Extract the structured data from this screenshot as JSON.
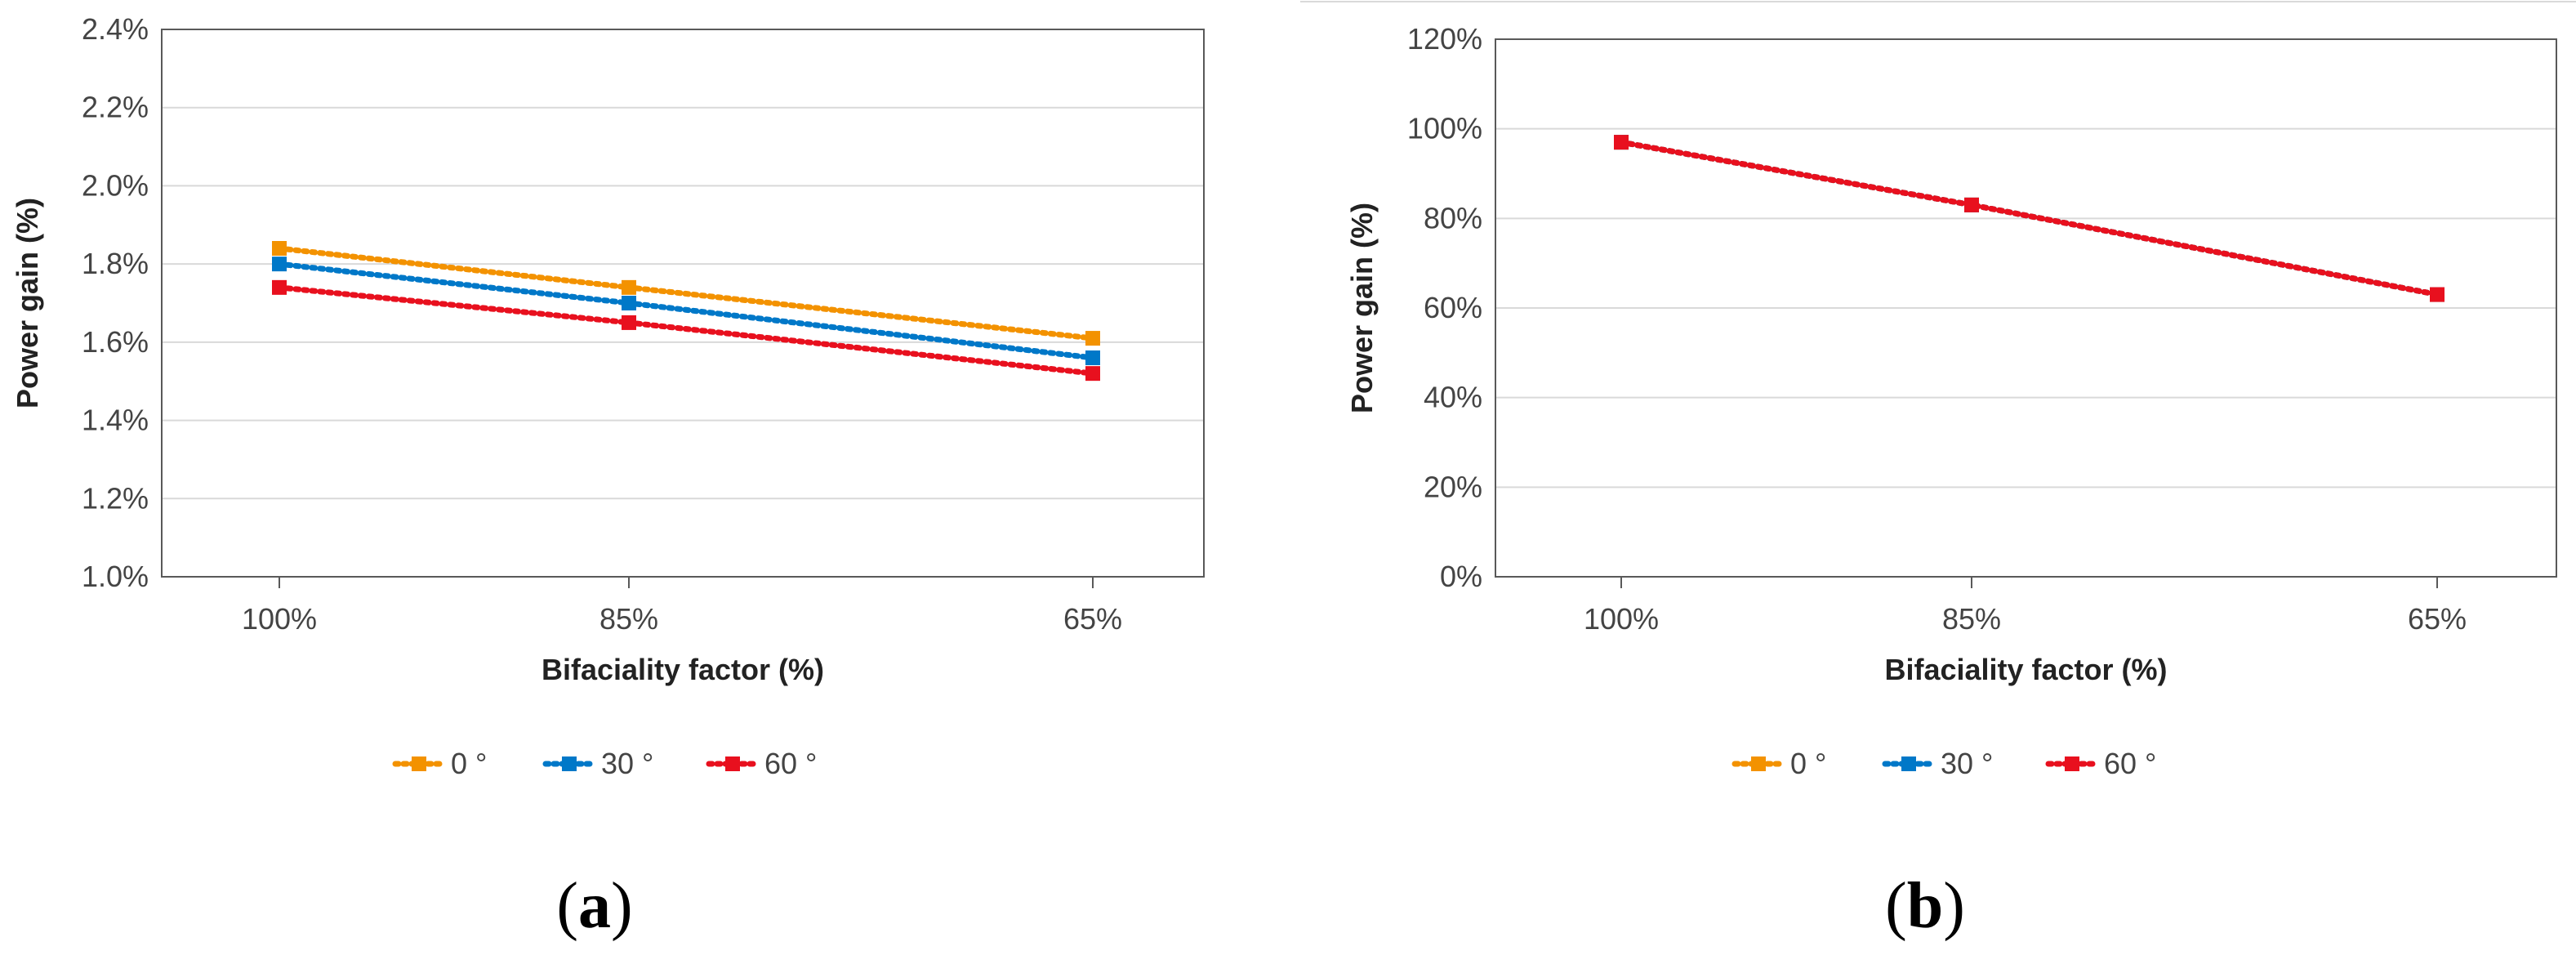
{
  "chart_data": [
    {
      "type": "line",
      "panel_label": {
        "open": "(",
        "letter": "a",
        "close": ")"
      },
      "title": "",
      "xlabel": "Bifaciality factor (%)",
      "ylabel": "Power gain (%)",
      "categories": [
        "100%",
        "85%",
        "65%"
      ],
      "ylim": [
        1.0,
        2.4
      ],
      "yticks": [
        1.0,
        1.2,
        1.4,
        1.6,
        1.8,
        2.0,
        2.2,
        2.4
      ],
      "yticklabels": [
        "1.0%",
        "1.2%",
        "1.4%",
        "1.6%",
        "1.8%",
        "2.0%",
        "2.2%",
        "2.4%"
      ],
      "grid": true,
      "legend_position": "bottom",
      "series": [
        {
          "name": "0 °",
          "color": "#F39200",
          "values": [
            1.84,
            1.74,
            1.61
          ]
        },
        {
          "name": "30 °",
          "color": "#0078C8",
          "values": [
            1.8,
            1.7,
            1.56
          ]
        },
        {
          "name": "60 °",
          "color": "#E8101E",
          "values": [
            1.74,
            1.65,
            1.52
          ]
        }
      ]
    },
    {
      "type": "line",
      "panel_label": {
        "open": "(",
        "letter": "b",
        "close": ")"
      },
      "title": "",
      "xlabel": "Bifaciality factor (%)",
      "ylabel": "Power gain (%)",
      "categories": [
        "100%",
        "85%",
        "65%"
      ],
      "ylim": [
        0,
        120
      ],
      "yticks": [
        0,
        20,
        40,
        60,
        80,
        100,
        120
      ],
      "yticklabels": [
        "0%",
        "20%",
        "40%",
        "60%",
        "80%",
        "100%",
        "120%"
      ],
      "grid": true,
      "legend_position": "bottom",
      "series": [
        {
          "name": "0 °",
          "color": "#F39200",
          "values": [
            97,
            83,
            63
          ]
        },
        {
          "name": "30 °",
          "color": "#0078C8",
          "values": [
            97,
            83,
            63
          ]
        },
        {
          "name": "60 °",
          "color": "#E8101E",
          "values": [
            97,
            83,
            63
          ]
        }
      ]
    }
  ]
}
